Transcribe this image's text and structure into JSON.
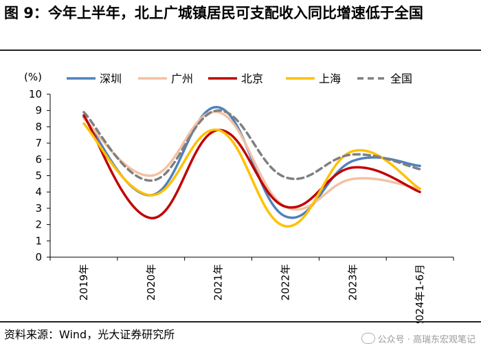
{
  "header": {
    "title": "图 9：今年上半年，北上广城镇居民可支配收入同比增速低于全国"
  },
  "footer": {
    "source": "资料来源：Wind，光大证券研究所",
    "watermark": "公众号 · 高瑞东宏观笔记"
  },
  "chart_data": {
    "type": "line",
    "title": "图 9：今年上半年，北上广城镇居民可支配收入同比增速低于全国",
    "ylabel": "(%)",
    "xlabel": "",
    "ylim": [
      0,
      10
    ],
    "yticks": [
      0,
      1,
      2,
      3,
      4,
      5,
      6,
      7,
      8,
      9,
      10
    ],
    "categories": [
      "2019年",
      "2020年",
      "2021年",
      "2022年",
      "2023年",
      "2024年1-6月"
    ],
    "legend_position": "top",
    "series": [
      {
        "name": "深圳",
        "color": "#4f81bd",
        "dash": false,
        "values": [
          8.6,
          3.8,
          9.2,
          2.5,
          5.9,
          5.6
        ]
      },
      {
        "name": "广州",
        "color": "#f4c1a1",
        "dash": false,
        "values": [
          8.5,
          5.0,
          8.9,
          3.1,
          4.8,
          4.2
        ]
      },
      {
        "name": "北京",
        "color": "#c00000",
        "dash": false,
        "values": [
          8.7,
          2.4,
          7.8,
          3.1,
          5.5,
          4.0
        ]
      },
      {
        "name": "上海",
        "color": "#ffc000",
        "dash": false,
        "values": [
          8.2,
          3.8,
          7.8,
          1.9,
          6.5,
          4.2
        ]
      },
      {
        "name": "全国",
        "color": "#7f7f7f",
        "dash": true,
        "values": [
          8.9,
          4.7,
          9.0,
          4.9,
          6.3,
          5.4
        ]
      }
    ]
  }
}
